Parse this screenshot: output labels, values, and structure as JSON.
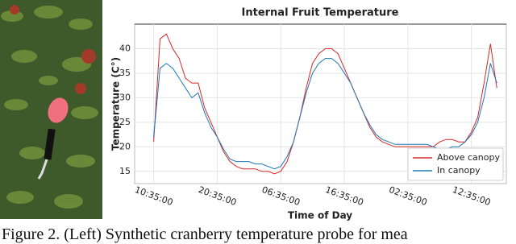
{
  "figure": {
    "caption": "Figure 2. (Left) Synthetic cranberry temperature probe for mea"
  },
  "chart_data": {
    "type": "line",
    "title": "Internal Fruit Temperature",
    "x_label": "Time of Day",
    "y_label": "Temperature (C°)",
    "x": [
      0,
      1,
      2,
      3,
      4,
      5,
      6,
      7,
      8,
      9,
      10,
      11,
      12,
      13,
      14,
      15,
      16,
      17,
      18,
      19,
      20,
      21,
      22,
      23,
      24,
      25,
      26,
      27,
      28,
      29,
      30,
      31,
      32,
      33,
      34,
      35,
      36,
      37,
      38,
      39,
      40,
      41,
      42,
      43,
      44,
      45,
      46,
      47,
      48,
      49,
      50,
      51,
      52,
      53,
      54
    ],
    "series": [
      {
        "name": "Above canopy",
        "color": "#d62728",
        "values": [
          21,
          42,
          43,
          40,
          38,
          34,
          33,
          33,
          28,
          25,
          22,
          19,
          17,
          16,
          15.5,
          15.5,
          15.5,
          15,
          15,
          14.5,
          15,
          17,
          21,
          26,
          32,
          37,
          39,
          40,
          40,
          39,
          36,
          33,
          30,
          27,
          24,
          22,
          21,
          20.5,
          20,
          20,
          20,
          20,
          20,
          20,
          20,
          21,
          21.5,
          21.5,
          21,
          21,
          23,
          26,
          33,
          41,
          32
        ]
      },
      {
        "name": "In canopy",
        "color": "#1f77b4",
        "values": [
          22,
          36,
          37,
          36,
          34,
          32,
          30,
          31,
          27,
          24,
          22,
          19.5,
          17.5,
          17,
          17,
          17,
          16.5,
          16.5,
          16,
          15.5,
          16,
          18,
          21,
          26,
          31,
          35,
          37,
          38,
          38,
          37,
          35,
          33,
          30,
          27,
          24.5,
          22.5,
          21.5,
          21,
          20.5,
          20.5,
          20.5,
          20.5,
          20.5,
          20.5,
          20,
          19.5,
          19.5,
          20,
          20,
          21,
          22.5,
          25,
          30,
          37,
          33
        ]
      }
    ],
    "xlim": [
      -3,
      55.5
    ],
    "xticks": [
      {
        "value": 0,
        "label": "10:35:00"
      },
      {
        "value": 10,
        "label": "20:35:00"
      },
      {
        "value": 20,
        "label": "06:35:00"
      },
      {
        "value": 30,
        "label": "16:35:00"
      },
      {
        "value": 40,
        "label": "02:35:00"
      },
      {
        "value": 50,
        "label": "12:35:00"
      }
    ],
    "ylim": [
      12.5,
      45
    ],
    "yticks": [
      15,
      20,
      25,
      30,
      35,
      40
    ],
    "grid": true,
    "legend": "lower right"
  }
}
